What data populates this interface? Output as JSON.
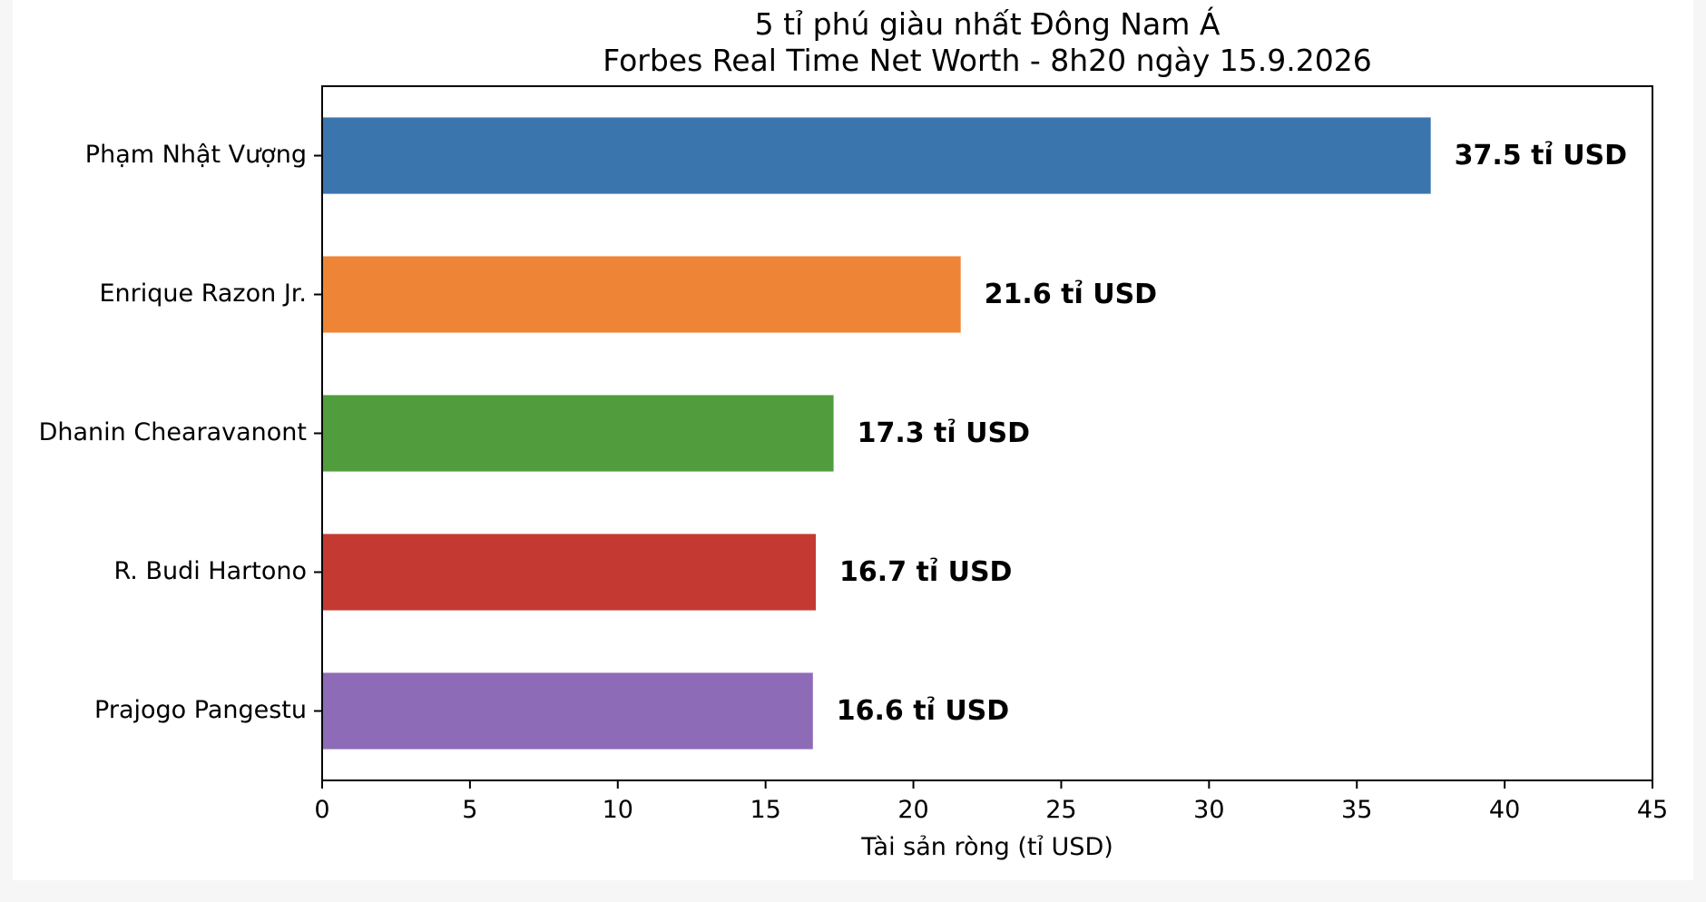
{
  "chart_data": {
    "type": "bar",
    "orientation": "horizontal",
    "title": "5 tỉ phú giàu nhất Đông Nam Á",
    "subtitle": "Forbes Real Time Net Worth - 8h20 ngày 15.9.2026",
    "xlabel": "Tài sản ròng (tỉ USD)",
    "ylabel": "",
    "xlim": [
      0,
      45
    ],
    "xticks": [
      0,
      5,
      10,
      15,
      20,
      25,
      30,
      35,
      40,
      45
    ],
    "grid": false,
    "categories": [
      "Phạm Nhật Vượng",
      "Enrique Razon Jr.",
      "Dhanin Chearavanont",
      "R. Budi Hartono",
      "Prajogo Pangestu"
    ],
    "values": [
      37.5,
      21.6,
      17.3,
      16.7,
      16.6
    ],
    "data_labels": [
      "37.5 tỉ USD",
      "21.6 tỉ USD",
      "17.3 tỉ USD",
      "16.7 tỉ USD",
      "16.6 tỉ USD"
    ],
    "colors": [
      "#3a75ae",
      "#ee8536",
      "#519d3e",
      "#c43a33",
      "#8d6bb7"
    ]
  }
}
